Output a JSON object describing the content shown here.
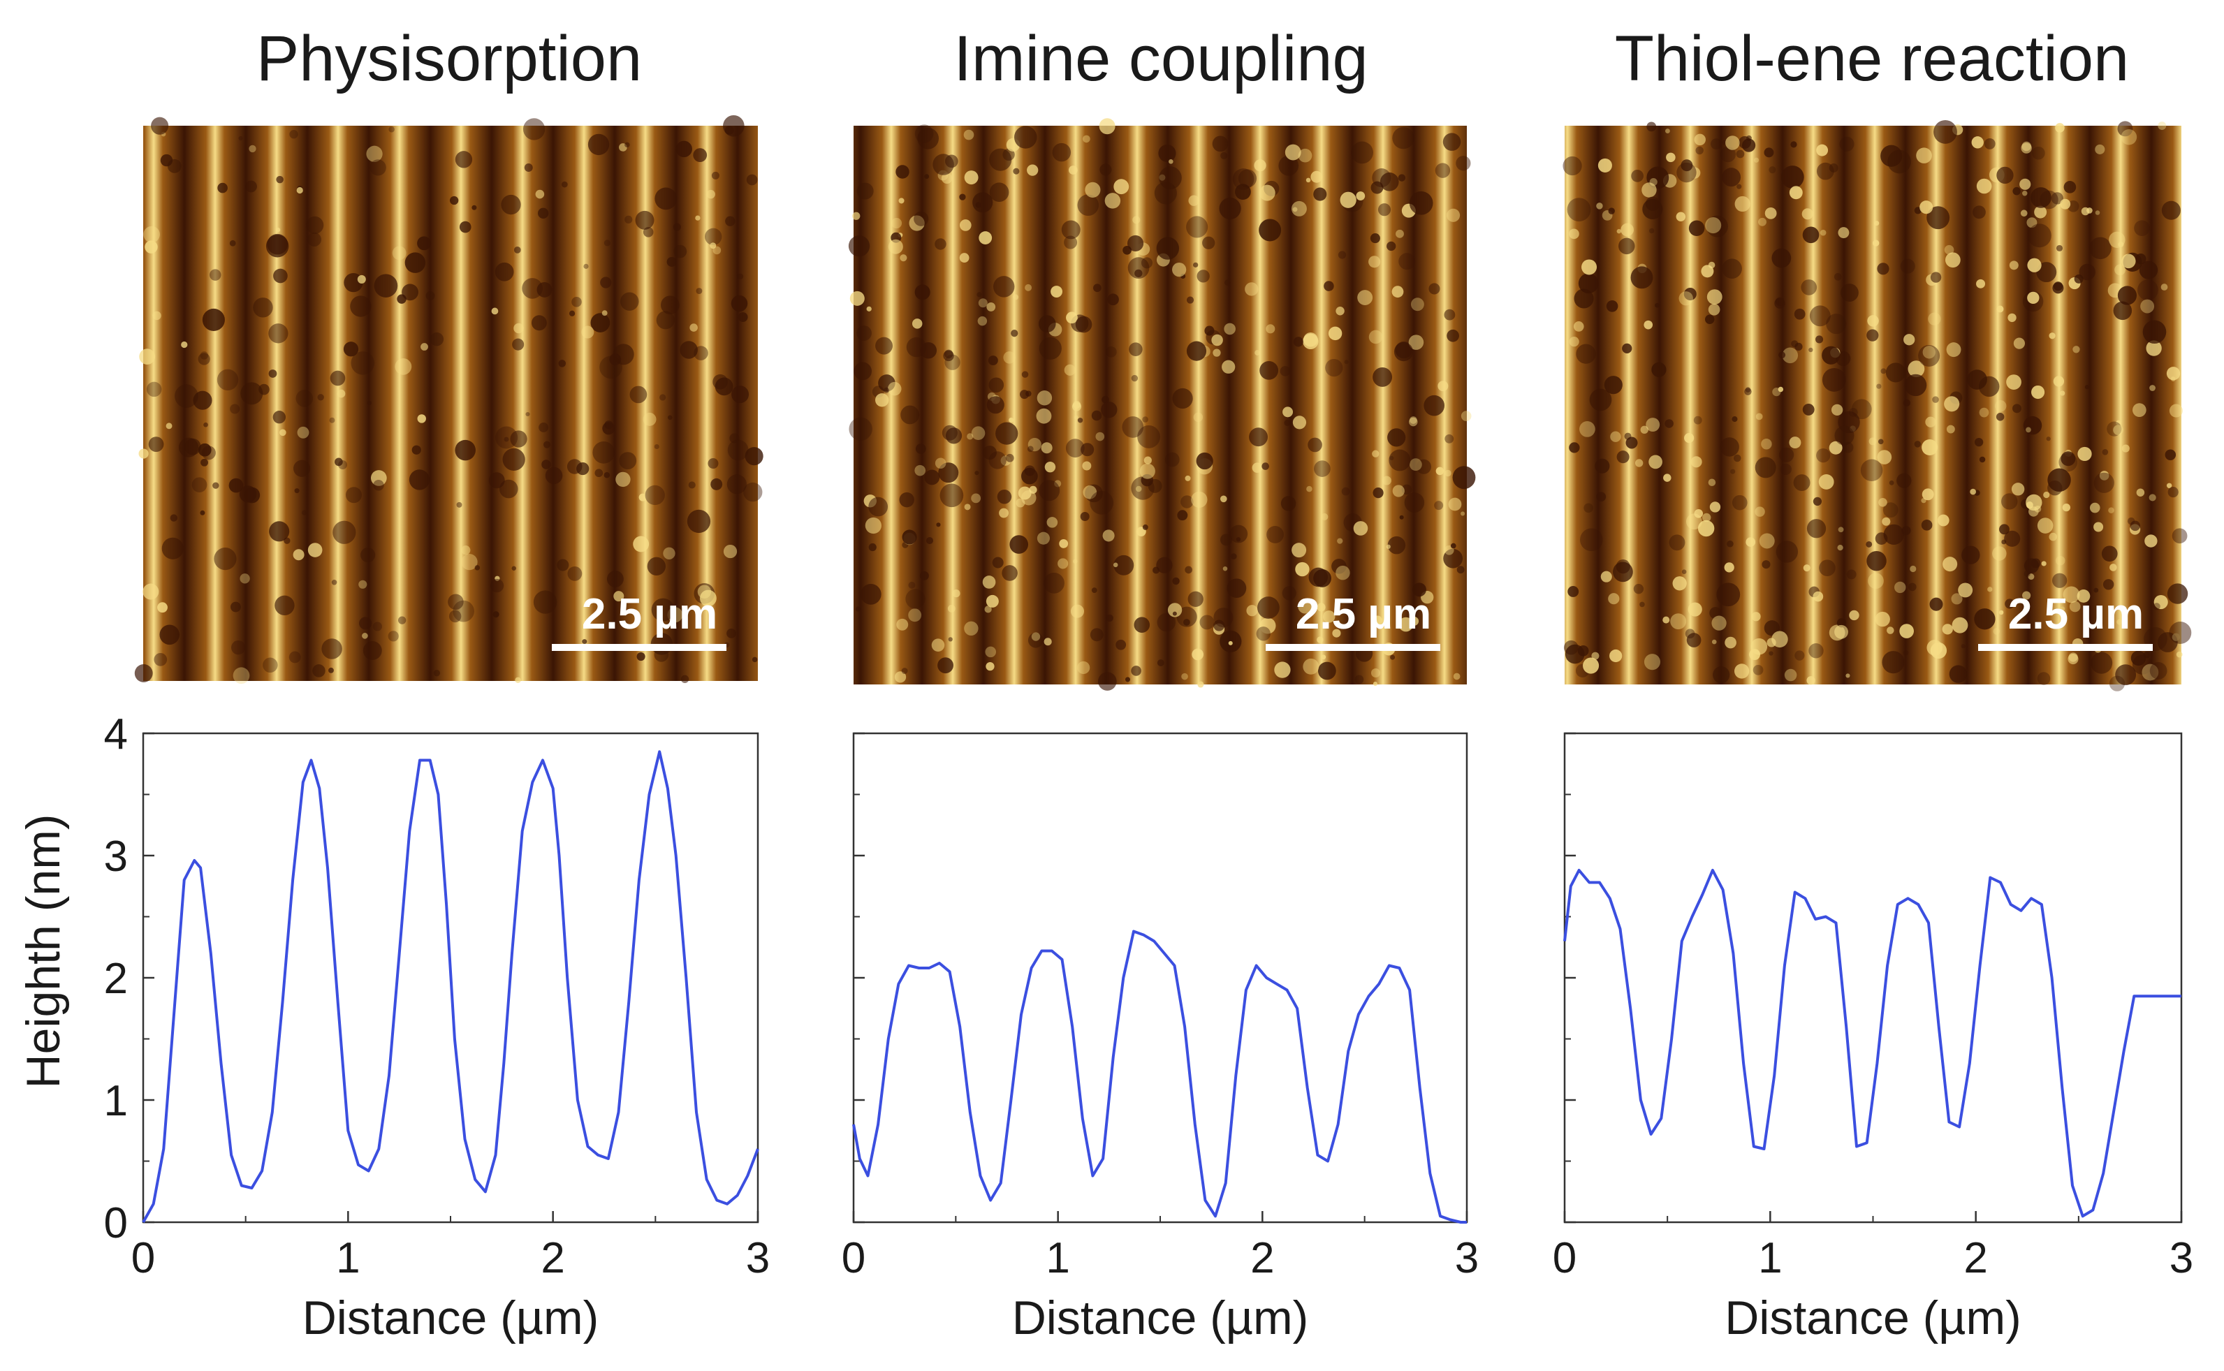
{
  "figure": {
    "panels": [
      {
        "title": "Physisorption",
        "scale_bar": "2.5 µm",
        "afm_pattern": "regular-stripes"
      },
      {
        "title": "Imine coupling",
        "scale_bar": "2.5 µm",
        "afm_pattern": "granular-stripes"
      },
      {
        "title": "Thiol-ene reaction",
        "scale_bar": "2.5 µm",
        "afm_pattern": "speckled-aggregates"
      }
    ],
    "colors": {
      "line": "#3b4fe0",
      "afm_dark": "#3a1504",
      "afm_mid": "#9a5a14",
      "afm_bright": "#f6dc86",
      "axis": "#333333"
    }
  },
  "chart_data": [
    {
      "type": "line",
      "title": "Physisorption",
      "xlabel": "Distance (µm)",
      "ylabel": "Heighth (nm)",
      "xlim": [
        0,
        3
      ],
      "ylim": [
        0,
        4
      ],
      "xticks": [
        "0",
        "1",
        "2",
        "3"
      ],
      "yticks": [
        "0",
        "1",
        "2",
        "3",
        "4"
      ],
      "x": [
        0,
        0.05,
        0.1,
        0.15,
        0.2,
        0.25,
        0.28,
        0.33,
        0.38,
        0.43,
        0.48,
        0.53,
        0.58,
        0.63,
        0.68,
        0.73,
        0.78,
        0.82,
        0.86,
        0.9,
        0.95,
        1.0,
        1.05,
        1.1,
        1.15,
        1.2,
        1.25,
        1.3,
        1.35,
        1.4,
        1.44,
        1.48,
        1.52,
        1.57,
        1.62,
        1.67,
        1.72,
        1.76,
        1.8,
        1.85,
        1.9,
        1.95,
        2.0,
        2.03,
        2.07,
        2.12,
        2.17,
        2.22,
        2.27,
        2.32,
        2.37,
        2.42,
        2.47,
        2.52,
        2.56,
        2.6,
        2.65,
        2.7,
        2.75,
        2.8,
        2.85,
        2.9,
        2.95,
        3.0
      ],
      "values": [
        0,
        0.15,
        0.6,
        1.7,
        2.8,
        2.96,
        2.9,
        2.2,
        1.3,
        0.55,
        0.3,
        0.28,
        0.42,
        0.9,
        1.8,
        2.8,
        3.6,
        3.78,
        3.55,
        2.9,
        1.8,
        0.75,
        0.47,
        0.42,
        0.6,
        1.2,
        2.2,
        3.2,
        3.78,
        3.78,
        3.5,
        2.6,
        1.5,
        0.68,
        0.35,
        0.25,
        0.55,
        1.3,
        2.2,
        3.2,
        3.6,
        3.78,
        3.55,
        3.0,
        2.0,
        1.0,
        0.62,
        0.55,
        0.52,
        0.9,
        1.8,
        2.8,
        3.5,
        3.85,
        3.55,
        3.0,
        2.0,
        0.9,
        0.35,
        0.18,
        0.15,
        0.22,
        0.38,
        0.6
      ]
    },
    {
      "type": "line",
      "title": "Imine coupling",
      "xlabel": "Distance (µm)",
      "ylabel": "",
      "xlim": [
        0,
        3
      ],
      "ylim": [
        0,
        4
      ],
      "xticks": [
        "0",
        "1",
        "2",
        "3"
      ],
      "yticks": [],
      "x": [
        0,
        0.03,
        0.07,
        0.12,
        0.17,
        0.22,
        0.27,
        0.32,
        0.37,
        0.42,
        0.47,
        0.52,
        0.57,
        0.62,
        0.67,
        0.72,
        0.77,
        0.82,
        0.87,
        0.92,
        0.97,
        1.02,
        1.07,
        1.12,
        1.17,
        1.22,
        1.27,
        1.32,
        1.37,
        1.42,
        1.47,
        1.52,
        1.57,
        1.62,
        1.67,
        1.72,
        1.77,
        1.82,
        1.87,
        1.92,
        1.97,
        2.02,
        2.07,
        2.12,
        2.17,
        2.22,
        2.27,
        2.32,
        2.37,
        2.42,
        2.47,
        2.52,
        2.57,
        2.62,
        2.67,
        2.72,
        2.77,
        2.82,
        2.87,
        2.92,
        2.97,
        3.0
      ],
      "values": [
        0.8,
        0.52,
        0.38,
        0.8,
        1.5,
        1.95,
        2.1,
        2.08,
        2.08,
        2.12,
        2.05,
        1.6,
        0.9,
        0.38,
        0.18,
        0.32,
        1.0,
        1.7,
        2.08,
        2.22,
        2.22,
        2.15,
        1.6,
        0.85,
        0.38,
        0.52,
        1.35,
        2.0,
        2.38,
        2.35,
        2.3,
        2.2,
        2.1,
        1.6,
        0.8,
        0.18,
        0.05,
        0.32,
        1.2,
        1.9,
        2.1,
        2.0,
        1.95,
        1.9,
        1.75,
        1.1,
        0.55,
        0.5,
        0.8,
        1.4,
        1.7,
        1.85,
        1.95,
        2.1,
        2.08,
        1.9,
        1.1,
        0.4,
        0.05,
        0.02,
        0.0,
        0.0
      ]
    },
    {
      "type": "line",
      "title": "Thiol-ene reaction",
      "xlabel": "Distance (µm)",
      "ylabel": "",
      "xlim": [
        0,
        3
      ],
      "ylim": [
        0,
        4
      ],
      "xticks": [
        "0",
        "1",
        "2",
        "3"
      ],
      "yticks": [],
      "x": [
        0,
        0.03,
        0.07,
        0.12,
        0.17,
        0.22,
        0.27,
        0.32,
        0.37,
        0.42,
        0.47,
        0.52,
        0.57,
        0.62,
        0.67,
        0.72,
        0.77,
        0.82,
        0.87,
        0.92,
        0.97,
        1.02,
        1.07,
        1.12,
        1.17,
        1.22,
        1.27,
        1.32,
        1.37,
        1.42,
        1.47,
        1.52,
        1.57,
        1.62,
        1.67,
        1.72,
        1.77,
        1.82,
        1.87,
        1.92,
        1.97,
        2.02,
        2.07,
        2.12,
        2.17,
        2.22,
        2.27,
        2.32,
        2.37,
        2.42,
        2.47,
        2.52,
        2.57,
        2.62,
        2.67,
        2.72,
        2.77,
        2.82,
        2.87,
        2.92,
        2.97,
        3.0
      ],
      "values": [
        2.3,
        2.75,
        2.88,
        2.78,
        2.78,
        2.65,
        2.4,
        1.75,
        1.0,
        0.72,
        0.85,
        1.5,
        2.3,
        2.5,
        2.68,
        2.88,
        2.72,
        2.2,
        1.3,
        0.62,
        0.6,
        1.2,
        2.1,
        2.7,
        2.65,
        2.48,
        2.5,
        2.45,
        1.6,
        0.62,
        0.65,
        1.3,
        2.1,
        2.6,
        2.65,
        2.6,
        2.45,
        1.6,
        0.82,
        0.78,
        1.3,
        2.1,
        2.82,
        2.78,
        2.6,
        2.55,
        2.65,
        2.6,
        2.0,
        1.1,
        0.3,
        0.05,
        0.1,
        0.4,
        0.9,
        1.4,
        1.85,
        1.85,
        1.85,
        1.85,
        1.85,
        1.85
      ]
    }
  ]
}
